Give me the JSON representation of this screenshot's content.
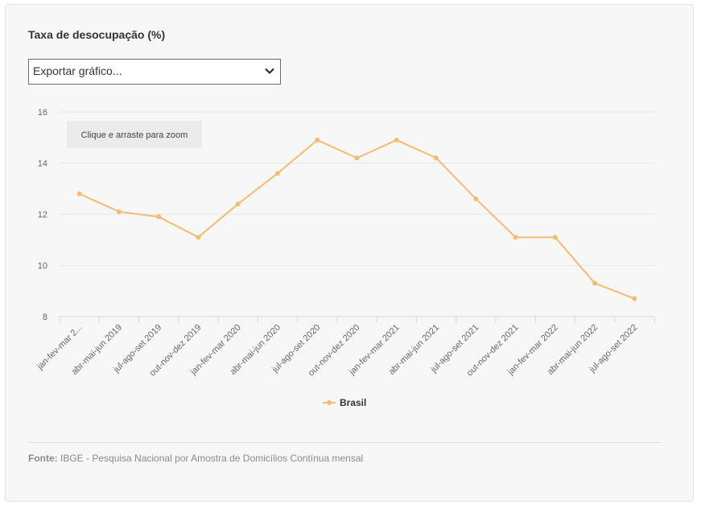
{
  "title": "Taxa de desocupação (%)",
  "export_select": {
    "value": "Exportar gráfico..."
  },
  "zoom_hint": "Clique e arraste para zoom",
  "source": {
    "label": "Fonte:",
    "text": "IBGE - Pesquisa Nacional por Amostra de Domicílios Contínua mensal"
  },
  "colors": {
    "series": "#f2bd73",
    "grid": "#e6e6e6",
    "axis": "#ccd6eb"
  },
  "chart_data": {
    "type": "line",
    "title": "Taxa de desocupação (%)",
    "xlabel": "",
    "ylabel": "",
    "ylim": [
      8,
      16
    ],
    "yticks": [
      8,
      10,
      12,
      14,
      16
    ],
    "categories": [
      "jan-fev-mar 2...",
      "abr-mai-jun 2019",
      "jul-ago-set 2019",
      "out-nov-dez 2019",
      "jan-fev-mar 2020",
      "abr-mai-jun 2020",
      "jul-ago-set 2020",
      "out-nov-dez 2020",
      "jan-fev-mar 2021",
      "abr-mai-jun 2021",
      "jul-ago-set 2021",
      "out-nov-dez 2021",
      "jan-fev-mar 2022",
      "abr-mai-jun 2022",
      "jul-ago-set 2022"
    ],
    "series": [
      {
        "name": "Brasil",
        "values": [
          12.8,
          12.1,
          11.9,
          11.1,
          12.4,
          13.6,
          14.9,
          14.2,
          14.9,
          14.2,
          12.6,
          11.1,
          11.1,
          9.3,
          8.7
        ]
      }
    ],
    "legend": "bottom-center"
  }
}
